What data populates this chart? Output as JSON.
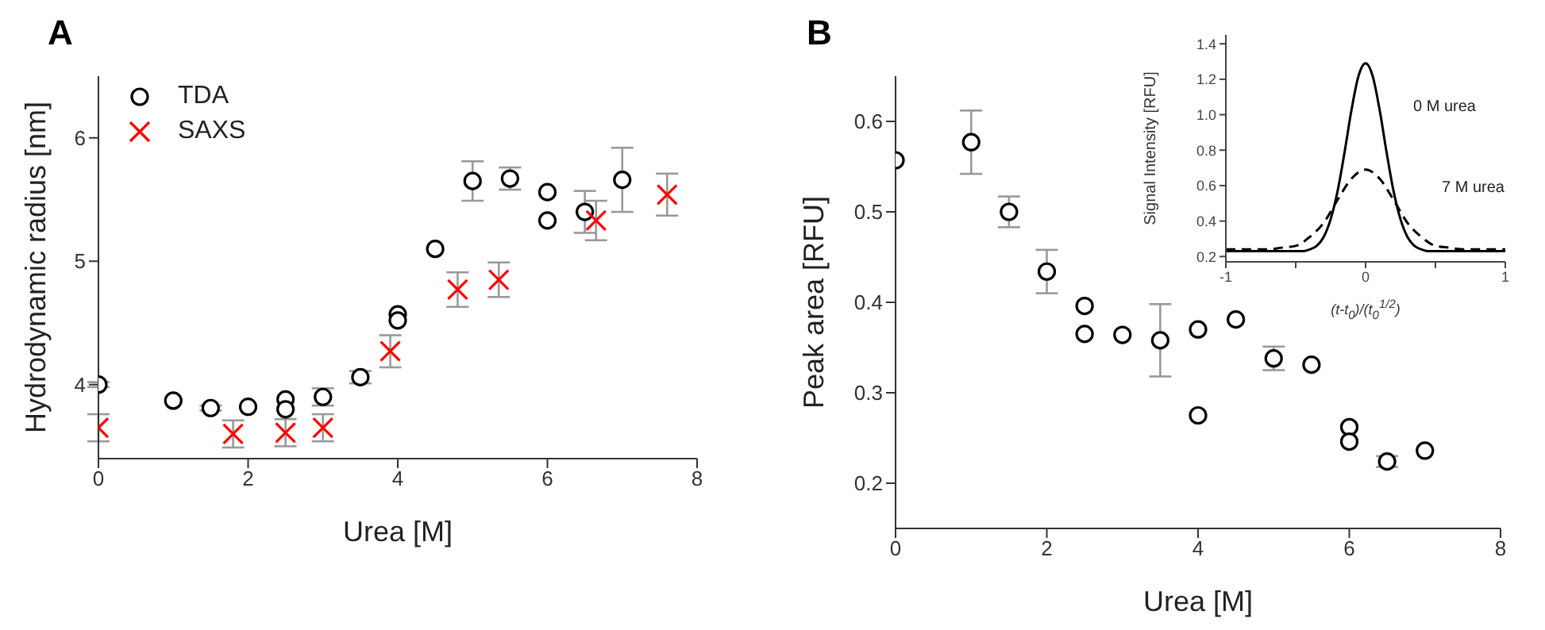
{
  "chart_data": [
    {
      "type": "scatter",
      "title": "A",
      "xlabel": "Urea [M]",
      "ylabel": "Hydrodynamic radius [nm]",
      "xlim": [
        0,
        8
      ],
      "xticks": [
        0,
        2,
        4,
        6,
        8
      ],
      "ylim": [
        3.4,
        6.5
      ],
      "yticks": [
        4,
        5,
        6
      ],
      "legend": "top left",
      "series": [
        {
          "name": "TDA",
          "color": "#000000",
          "marker": "circle",
          "x": [
            0,
            1,
            1.5,
            2,
            2.5,
            2.5,
            3,
            3.5,
            4,
            4,
            4.5,
            5,
            5.5,
            6,
            6,
            6.5,
            7
          ],
          "values": [
            4.0,
            3.87,
            3.81,
            3.82,
            3.88,
            3.8,
            3.9,
            4.06,
            4.57,
            4.52,
            5.1,
            5.65,
            5.67,
            5.56,
            5.33,
            5.4,
            5.66
          ],
          "errors": [
            0.02,
            null,
            0.02,
            null,
            null,
            null,
            0.07,
            0.05,
            null,
            null,
            null,
            0.16,
            0.09,
            null,
            null,
            0.17,
            0.26
          ]
        },
        {
          "name": "SAXS",
          "color": "#ff0000",
          "marker": "cross",
          "x": [
            0,
            1.8,
            2.5,
            3,
            3.9,
            4.8,
            5.35,
            6.65,
            7.6
          ],
          "values": [
            3.65,
            3.6,
            3.61,
            3.65,
            4.27,
            4.77,
            4.85,
            5.33,
            5.54
          ],
          "errors": [
            0.11,
            0.11,
            0.11,
            0.11,
            0.13,
            0.14,
            0.14,
            0.16,
            0.17
          ]
        }
      ]
    },
    {
      "type": "scatter",
      "title": "B",
      "xlabel": "Urea [M]",
      "ylabel": "Peak area [RFU]",
      "xlim": [
        0,
        8
      ],
      "xticks": [
        0,
        2,
        4,
        6,
        8
      ],
      "ylim": [
        0.15,
        0.65
      ],
      "yticks": [
        0.2,
        0.3,
        0.4,
        0.5,
        0.6
      ],
      "series": [
        {
          "color": "#000000",
          "marker": "circle",
          "x": [
            0,
            1,
            1.5,
            2,
            2.5,
            2.5,
            3,
            3.5,
            4,
            4,
            4.5,
            5,
            5.5,
            6,
            6,
            6.5,
            7
          ],
          "values": [
            0.557,
            0.577,
            0.5,
            0.434,
            0.396,
            0.365,
            0.364,
            0.358,
            0.37,
            0.275,
            0.381,
            0.338,
            0.331,
            0.262,
            0.246,
            0.224,
            0.236
          ],
          "errors": [
            null,
            0.035,
            0.017,
            0.024,
            null,
            null,
            null,
            0.04,
            null,
            null,
            null,
            0.013,
            null,
            null,
            null,
            0.006,
            null
          ]
        }
      ]
    },
    {
      "type": "line",
      "xlabel": "(t-t$_{0}$)/(t$_{0}$$^{1/2}$)",
      "ylabel": "Signal Intensity [RFU]",
      "xlim": [
        -1,
        1
      ],
      "xticks": [
        -1,
        {
          "value": -0.5,
          "label": null
        },
        0,
        {
          "value": 0.5,
          "label": null
        },
        1
      ],
      "ylim": [
        0.17,
        1.45
      ],
      "yticks": [
        0.2,
        0.4,
        0.6,
        0.8,
        {
          "value": 1,
          "label": "1.0"
        },
        1.2,
        1.4
      ],
      "series": [
        {
          "name": "0 M urea",
          "color": "#000000",
          "line_style": "solid",
          "x": [
            -1,
            -0.6,
            -0.45,
            -0.4,
            -0.35,
            -0.3,
            -0.25,
            -0.2,
            -0.15,
            -0.1,
            -0.05,
            0,
            0.05,
            0.1,
            0.15,
            0.2,
            0.25,
            0.3,
            0.35,
            0.4,
            0.45,
            0.6,
            1
          ],
          "values": [
            0.23,
            0.23,
            0.23,
            0.24,
            0.26,
            0.31,
            0.41,
            0.57,
            0.79,
            1.03,
            1.22,
            1.29,
            1.22,
            1.03,
            0.79,
            0.57,
            0.41,
            0.31,
            0.26,
            0.24,
            0.23,
            0.23,
            0.23
          ]
        },
        {
          "name": "7 M urea",
          "color": "#000000",
          "line_style": "dashed",
          "x": [
            -1,
            -0.7,
            -0.6,
            -0.5,
            -0.4,
            -0.3,
            -0.2,
            -0.1,
            0,
            0.1,
            0.2,
            0.3,
            0.4,
            0.5,
            0.6,
            0.7,
            1
          ],
          "values": [
            0.24,
            0.24,
            0.25,
            0.26,
            0.31,
            0.39,
            0.52,
            0.64,
            0.69,
            0.64,
            0.52,
            0.39,
            0.31,
            0.26,
            0.25,
            0.24,
            0.24
          ]
        }
      ]
    }
  ]
}
